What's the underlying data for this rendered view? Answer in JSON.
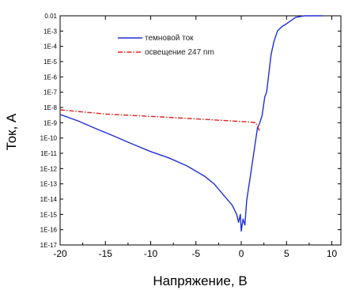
{
  "chart_data": {
    "type": "line",
    "xlabel": "Напряжение, В",
    "ylabel": "Ток, А",
    "xlim": [
      -20,
      11
    ],
    "ylim_log10": [
      -17,
      -2
    ],
    "y_scale": "log",
    "x_ticks": [
      "-20",
      "-15",
      "-10",
      "-5",
      "0",
      "5",
      "10"
    ],
    "x_tick_values": [
      -20,
      -15,
      -10,
      -5,
      0,
      5,
      10
    ],
    "y_ticks": [
      "0.01",
      "1E-3",
      "1E-4",
      "1E-5",
      "1E-6",
      "1E-7",
      "1E-8",
      "1E-9",
      "1E-10",
      "1E-11",
      "1E-12",
      "1E-13",
      "1E-14",
      "1E-15",
      "1E-16",
      "1E-17"
    ],
    "grid": false,
    "legend_position": "top-left",
    "series": [
      {
        "name": "темновой ток",
        "color": "#1f2fd6",
        "dash": "solid",
        "x": [
          -20,
          -18,
          -16,
          -14,
          -12,
          -10,
          -8,
          -6,
          -4,
          -3,
          -2,
          -1,
          -0.5,
          -0.3,
          -0.1,
          0,
          0.2,
          0.4,
          0.6,
          0.8,
          1.0,
          1.2,
          1.5,
          1.8,
          2.0,
          2.3,
          2.6,
          2.8,
          3.0,
          3.3,
          3.6,
          4.0,
          4.5,
          5.0,
          6.0,
          7.0,
          8.0,
          9.0
        ],
        "y": [
          3.5e-09,
          1.3e-09,
          4e-10,
          1.3e-10,
          4e-11,
          1.3e-11,
          5e-12,
          1.5e-12,
          3e-13,
          1e-13,
          2e-14,
          4e-15,
          1e-15,
          3e-16,
          1e-15,
          8e-17,
          5e-16,
          2e-16,
          8e-15,
          5e-14,
          3e-13,
          2e-12,
          3e-11,
          5e-10,
          8e-10,
          3e-09,
          5e-08,
          1e-07,
          1e-06,
          3e-05,
          0.0002,
          0.001,
          0.002,
          0.003,
          0.008,
          0.013,
          0.02,
          0.03
        ]
      },
      {
        "name": "освещение 247 nm",
        "color": "#e02020",
        "dash": "dash-dot",
        "x": [
          -20,
          -15,
          -10,
          -5,
          0,
          1.0,
          1.6,
          1.8,
          2.0
        ],
        "y": [
          7e-09,
          3.7e-09,
          2.6e-09,
          1.8e-09,
          1.2e-09,
          1.1e-09,
          1e-09,
          6e-10,
          3e-10
        ]
      }
    ]
  }
}
